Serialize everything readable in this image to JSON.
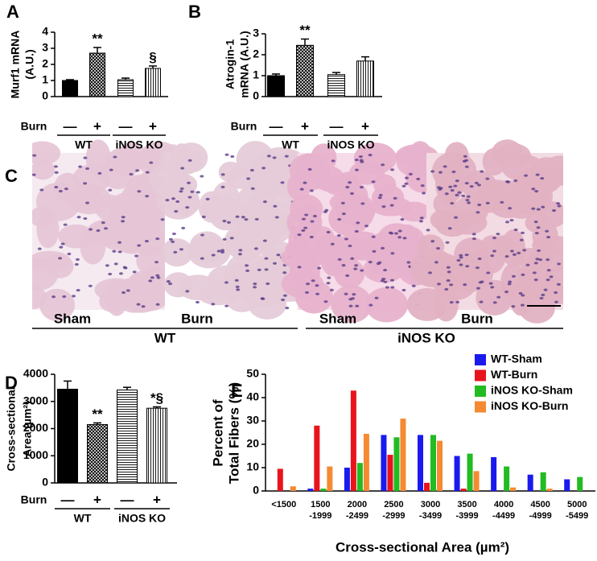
{
  "chart_data": [
    {
      "type": "bar",
      "panel": "A",
      "ylabel": [
        "Murf1 mRNA",
        "(A.U.)"
      ],
      "values": [
        1.0,
        2.7,
        1.05,
        1.75
      ],
      "errors": [
        0.05,
        0.35,
        0.1,
        0.15
      ],
      "fills": [
        "solid",
        "crosshatch",
        "hlines",
        "vlines"
      ],
      "color": "#000000",
      "annotations": [
        null,
        "**",
        null,
        "§"
      ],
      "row_label": "Burn",
      "row_marks": [
        "—",
        "+",
        "—",
        "+"
      ],
      "groups": [
        "WT",
        "iNOS KO"
      ],
      "ylim": [
        0,
        4
      ],
      "yticks": [
        0,
        1,
        2,
        3,
        4
      ]
    },
    {
      "type": "bar",
      "panel": "B",
      "ylabel": [
        "Atrogin-1",
        "mRNA (A.U.)"
      ],
      "values": [
        1.0,
        2.45,
        1.05,
        1.7
      ],
      "errors": [
        0.08,
        0.3,
        0.1,
        0.2
      ],
      "fills": [
        "solid",
        "crosshatch",
        "hlines",
        "vlines"
      ],
      "color": "#000000",
      "annotations": [
        null,
        "**",
        null,
        null
      ],
      "row_label": "Burn",
      "row_marks": [
        "—",
        "+",
        "—",
        "+"
      ],
      "groups": [
        "WT",
        "iNOS KO"
      ],
      "ylim": [
        0,
        3
      ],
      "yticks": [
        0,
        1,
        2,
        3
      ]
    },
    {
      "type": "bar",
      "panel": "D",
      "ylabel": [
        "Cross-sectional",
        "Area (µm²)"
      ],
      "values": [
        3450,
        2150,
        3420,
        2750
      ],
      "errors": [
        300,
        60,
        100,
        50
      ],
      "fills": [
        "solid",
        "crosshatch",
        "hlines",
        "vlines"
      ],
      "color": "#000000",
      "annotations": [
        null,
        "**",
        null,
        "*§"
      ],
      "row_label": "Burn",
      "row_marks": [
        "—",
        "+",
        "—",
        "+"
      ],
      "groups": [
        "WT",
        "iNOS KO"
      ],
      "ylim": [
        0,
        4000
      ],
      "yticks": [
        0,
        1000,
        2000,
        3000,
        4000
      ]
    },
    {
      "type": "grouped_bar",
      "panel": "E",
      "ylabel": [
        "Percent of",
        "Total Fibers (%)"
      ],
      "xlabel": "Cross-sectional Area (µm²)",
      "categories": [
        "<1500",
        "1500\n-1999",
        "2000\n-2499",
        "2500\n-2999",
        "3000\n-3499",
        "3500\n-3999",
        "4000\n-4499",
        "4500\n-4999",
        "5000\n-5499"
      ],
      "series": [
        {
          "name": "WT-Sham",
          "color": "#1a1aee",
          "values": [
            0,
            1,
            10,
            24,
            24,
            15,
            14.5,
            7,
            5
          ]
        },
        {
          "name": "WT-Burn",
          "color": "#e8141c",
          "values": [
            9.5,
            28,
            43,
            15.5,
            3.5,
            1,
            0,
            0,
            0
          ]
        },
        {
          "name": "iNOS KO-Sham",
          "color": "#22bb22",
          "values": [
            0,
            1,
            12,
            23,
            24,
            16,
            10.5,
            8,
            6
          ]
        },
        {
          "name": "iNOS KO-Burn",
          "color": "#f58a32",
          "values": [
            2,
            10.5,
            24.5,
            31,
            21.5,
            8.5,
            1.5,
            1,
            0
          ]
        }
      ],
      "ylim": [
        0,
        50
      ],
      "yticks": [
        0,
        10,
        20,
        30,
        40,
        50
      ]
    }
  ],
  "histology": {
    "panel": "C",
    "labels": [
      "Sham",
      "Burn",
      "Sham",
      "Burn"
    ],
    "groups": [
      "WT",
      "iNOS KO"
    ]
  }
}
